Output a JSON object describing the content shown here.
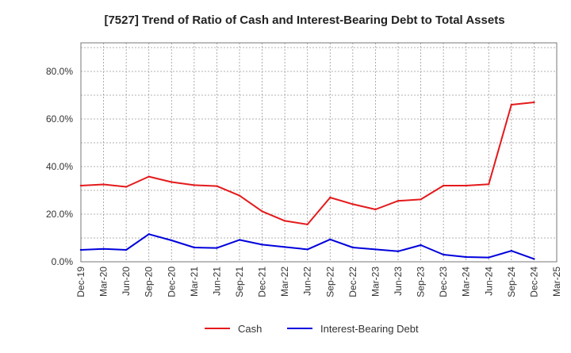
{
  "chart_data": {
    "type": "line",
    "title": "[7527]  Trend of Ratio of Cash and Interest-Bearing Debt to Total Assets",
    "xlabel": "",
    "ylabel": "",
    "categories": [
      "Dec-19",
      "Mar-20",
      "Jun-20",
      "Sep-20",
      "Dec-20",
      "Mar-21",
      "Jun-21",
      "Sep-21",
      "Dec-21",
      "Mar-22",
      "Jun-22",
      "Sep-22",
      "Dec-22",
      "Mar-23",
      "Jun-23",
      "Sep-23",
      "Dec-23",
      "Mar-24",
      "Jun-24",
      "Sep-24",
      "Dec-24",
      "Mar-25"
    ],
    "ylim": [
      0,
      92
    ],
    "yticks": [
      0,
      20,
      40,
      60,
      80
    ],
    "ytick_labels": [
      "0.0%",
      "20.0%",
      "40.0%",
      "60.0%",
      "80.0%"
    ],
    "grid": true,
    "legend_position": "bottom",
    "series": [
      {
        "name": "Cash",
        "color": "#e41a1c",
        "values": [
          32.0,
          32.5,
          31.5,
          35.8,
          33.5,
          32.2,
          31.8,
          27.8,
          21.2,
          17.2,
          15.7,
          27.0,
          24.2,
          22.0,
          25.6,
          26.2,
          32.0,
          32.0,
          32.6,
          66.0,
          67.0,
          null
        ]
      },
      {
        "name": "Interest-Bearing Debt",
        "color": "#0000dd",
        "values": [
          5.0,
          5.4,
          5.0,
          11.6,
          9.0,
          6.0,
          5.8,
          9.2,
          7.2,
          6.2,
          5.2,
          9.4,
          6.0,
          5.2,
          4.4,
          7.0,
          3.0,
          2.0,
          1.8,
          4.6,
          1.2,
          null
        ]
      }
    ]
  }
}
